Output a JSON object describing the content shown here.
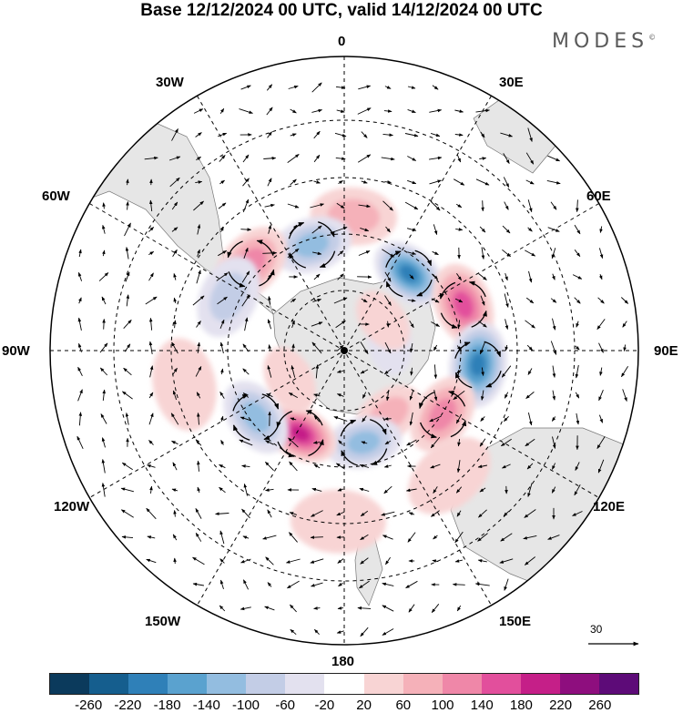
{
  "title": "Base 12/12/2024 00 UTC, valid 14/12/2024 00 UTC",
  "brand": "MODES",
  "brand_mark": "©",
  "longitude_labels": {
    "top": "0",
    "e30": "30E",
    "e60": "60E",
    "e90": "90E",
    "e120": "120E",
    "e150": "150E",
    "bottom": "180",
    "w150": "150W",
    "w120": "120W",
    "w90": "90W",
    "w60": "60W",
    "w30": "30W"
  },
  "reference_vector_label": "30",
  "colorbar": {
    "colors": [
      "#0b3a5c",
      "#155e8e",
      "#2f80b8",
      "#5aa2cf",
      "#93bde0",
      "#c3cde6",
      "#e3e1ef",
      "#ffffff",
      "#f8d4d4",
      "#f5b1b9",
      "#ef87a8",
      "#e24f9c",
      "#c51f88",
      "#8e0e7e",
      "#5d0b78"
    ],
    "tick_labels": [
      "-260",
      "-220",
      "-180",
      "-140",
      "-100",
      "-60",
      "-20",
      "20",
      "60",
      "100",
      "140",
      "180",
      "220",
      "260"
    ]
  },
  "anomaly_centers": [
    {
      "lon": 40,
      "lat": -58,
      "value": -180
    },
    {
      "lon": 69,
      "lat": -50,
      "value": 170
    },
    {
      "lon": 96,
      "lat": -48,
      "value": -190
    },
    {
      "lon": 123,
      "lat": -53,
      "value": 100
    },
    {
      "lon": 145,
      "lat": -65,
      "value": 60
    },
    {
      "lon": 168,
      "lat": -60,
      "value": -130
    },
    {
      "lon": -152,
      "lat": -60,
      "value": 200
    },
    {
      "lon": -127,
      "lat": -55,
      "value": -100
    },
    {
      "lon": 4,
      "lat": -48,
      "value": 80
    },
    {
      "lon": -17,
      "lat": -55,
      "value": -100
    },
    {
      "lon": -47,
      "lat": -50,
      "value": 100
    },
    {
      "lon": -65,
      "lat": -50,
      "value": -60
    },
    {
      "lon": 80,
      "lat": -75,
      "value": -30
    },
    {
      "lon": 52,
      "lat": -74,
      "value": 30
    },
    {
      "lon": -102,
      "lat": -40,
      "value": 30
    },
    {
      "lon": -118,
      "lat": -70,
      "value": 30
    },
    {
      "lon": 140,
      "lat": -40,
      "value": 40
    },
    {
      "lon": -178,
      "lat": -38,
      "value": 40
    }
  ]
}
